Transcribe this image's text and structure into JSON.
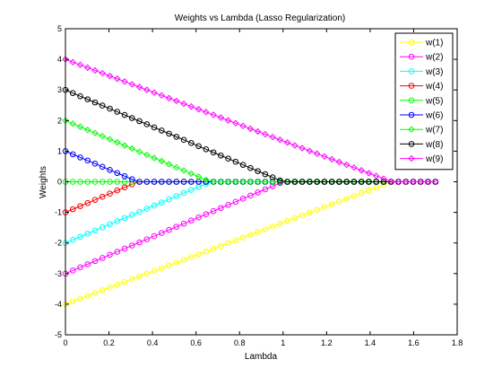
{
  "chart_data": {
    "type": "line",
    "title": "Weights vs Lambda (Lasso Regularization)",
    "xlabel": "Lambda",
    "ylabel": "Weights",
    "xlim": [
      0,
      1.8
    ],
    "ylim": [
      -5,
      5
    ],
    "xticks": [
      0,
      0.2,
      0.4,
      0.6,
      0.8,
      1,
      1.2,
      1.4,
      1.6,
      1.8
    ],
    "xtick_labels": [
      "0",
      "0.2",
      "0.4",
      "0.6",
      "0.8",
      "1",
      "1.2",
      "1.4",
      "1.6",
      "1.8"
    ],
    "yticks": [
      -5,
      -4,
      -3,
      -2,
      -1,
      0,
      1,
      2,
      3,
      4,
      5
    ],
    "ytick_labels": [
      "-5",
      "-4",
      "-3",
      "-2",
      "-1",
      "0",
      "1",
      "2",
      "3",
      "4",
      "5"
    ],
    "grid": false,
    "legend_position": "top-right",
    "lambda_range": [
      0,
      1.7
    ],
    "lambda_step": 0.034,
    "series": [
      {
        "name": "w(1)",
        "w0": -4,
        "zero_at": 1.5,
        "color": "#ffff00",
        "marker": "circle"
      },
      {
        "name": "w(2)",
        "w0": -3,
        "zero_at": 1.0,
        "color": "#ff00ff",
        "marker": "circle"
      },
      {
        "name": "w(3)",
        "w0": -2,
        "zero_at": 0.667,
        "color": "#00ffff",
        "marker": "circle"
      },
      {
        "name": "w(4)",
        "w0": -1,
        "zero_at": 0.333,
        "color": "#ff0000",
        "marker": "circle"
      },
      {
        "name": "w(5)",
        "w0": 0,
        "zero_at": 0,
        "color": "#00ff00",
        "marker": "circle"
      },
      {
        "name": "w(6)",
        "w0": 1,
        "zero_at": 0.333,
        "color": "#0000ff",
        "marker": "circle"
      },
      {
        "name": "w(7)",
        "w0": 2,
        "zero_at": 0.667,
        "color": "#00ff00",
        "marker": "diamond"
      },
      {
        "name": "w(8)",
        "w0": 3,
        "zero_at": 1.0,
        "color": "#000000",
        "marker": "circle"
      },
      {
        "name": "w(9)",
        "w0": 4,
        "zero_at": 1.5,
        "color": "#ff00ff",
        "marker": "diamond"
      }
    ]
  }
}
